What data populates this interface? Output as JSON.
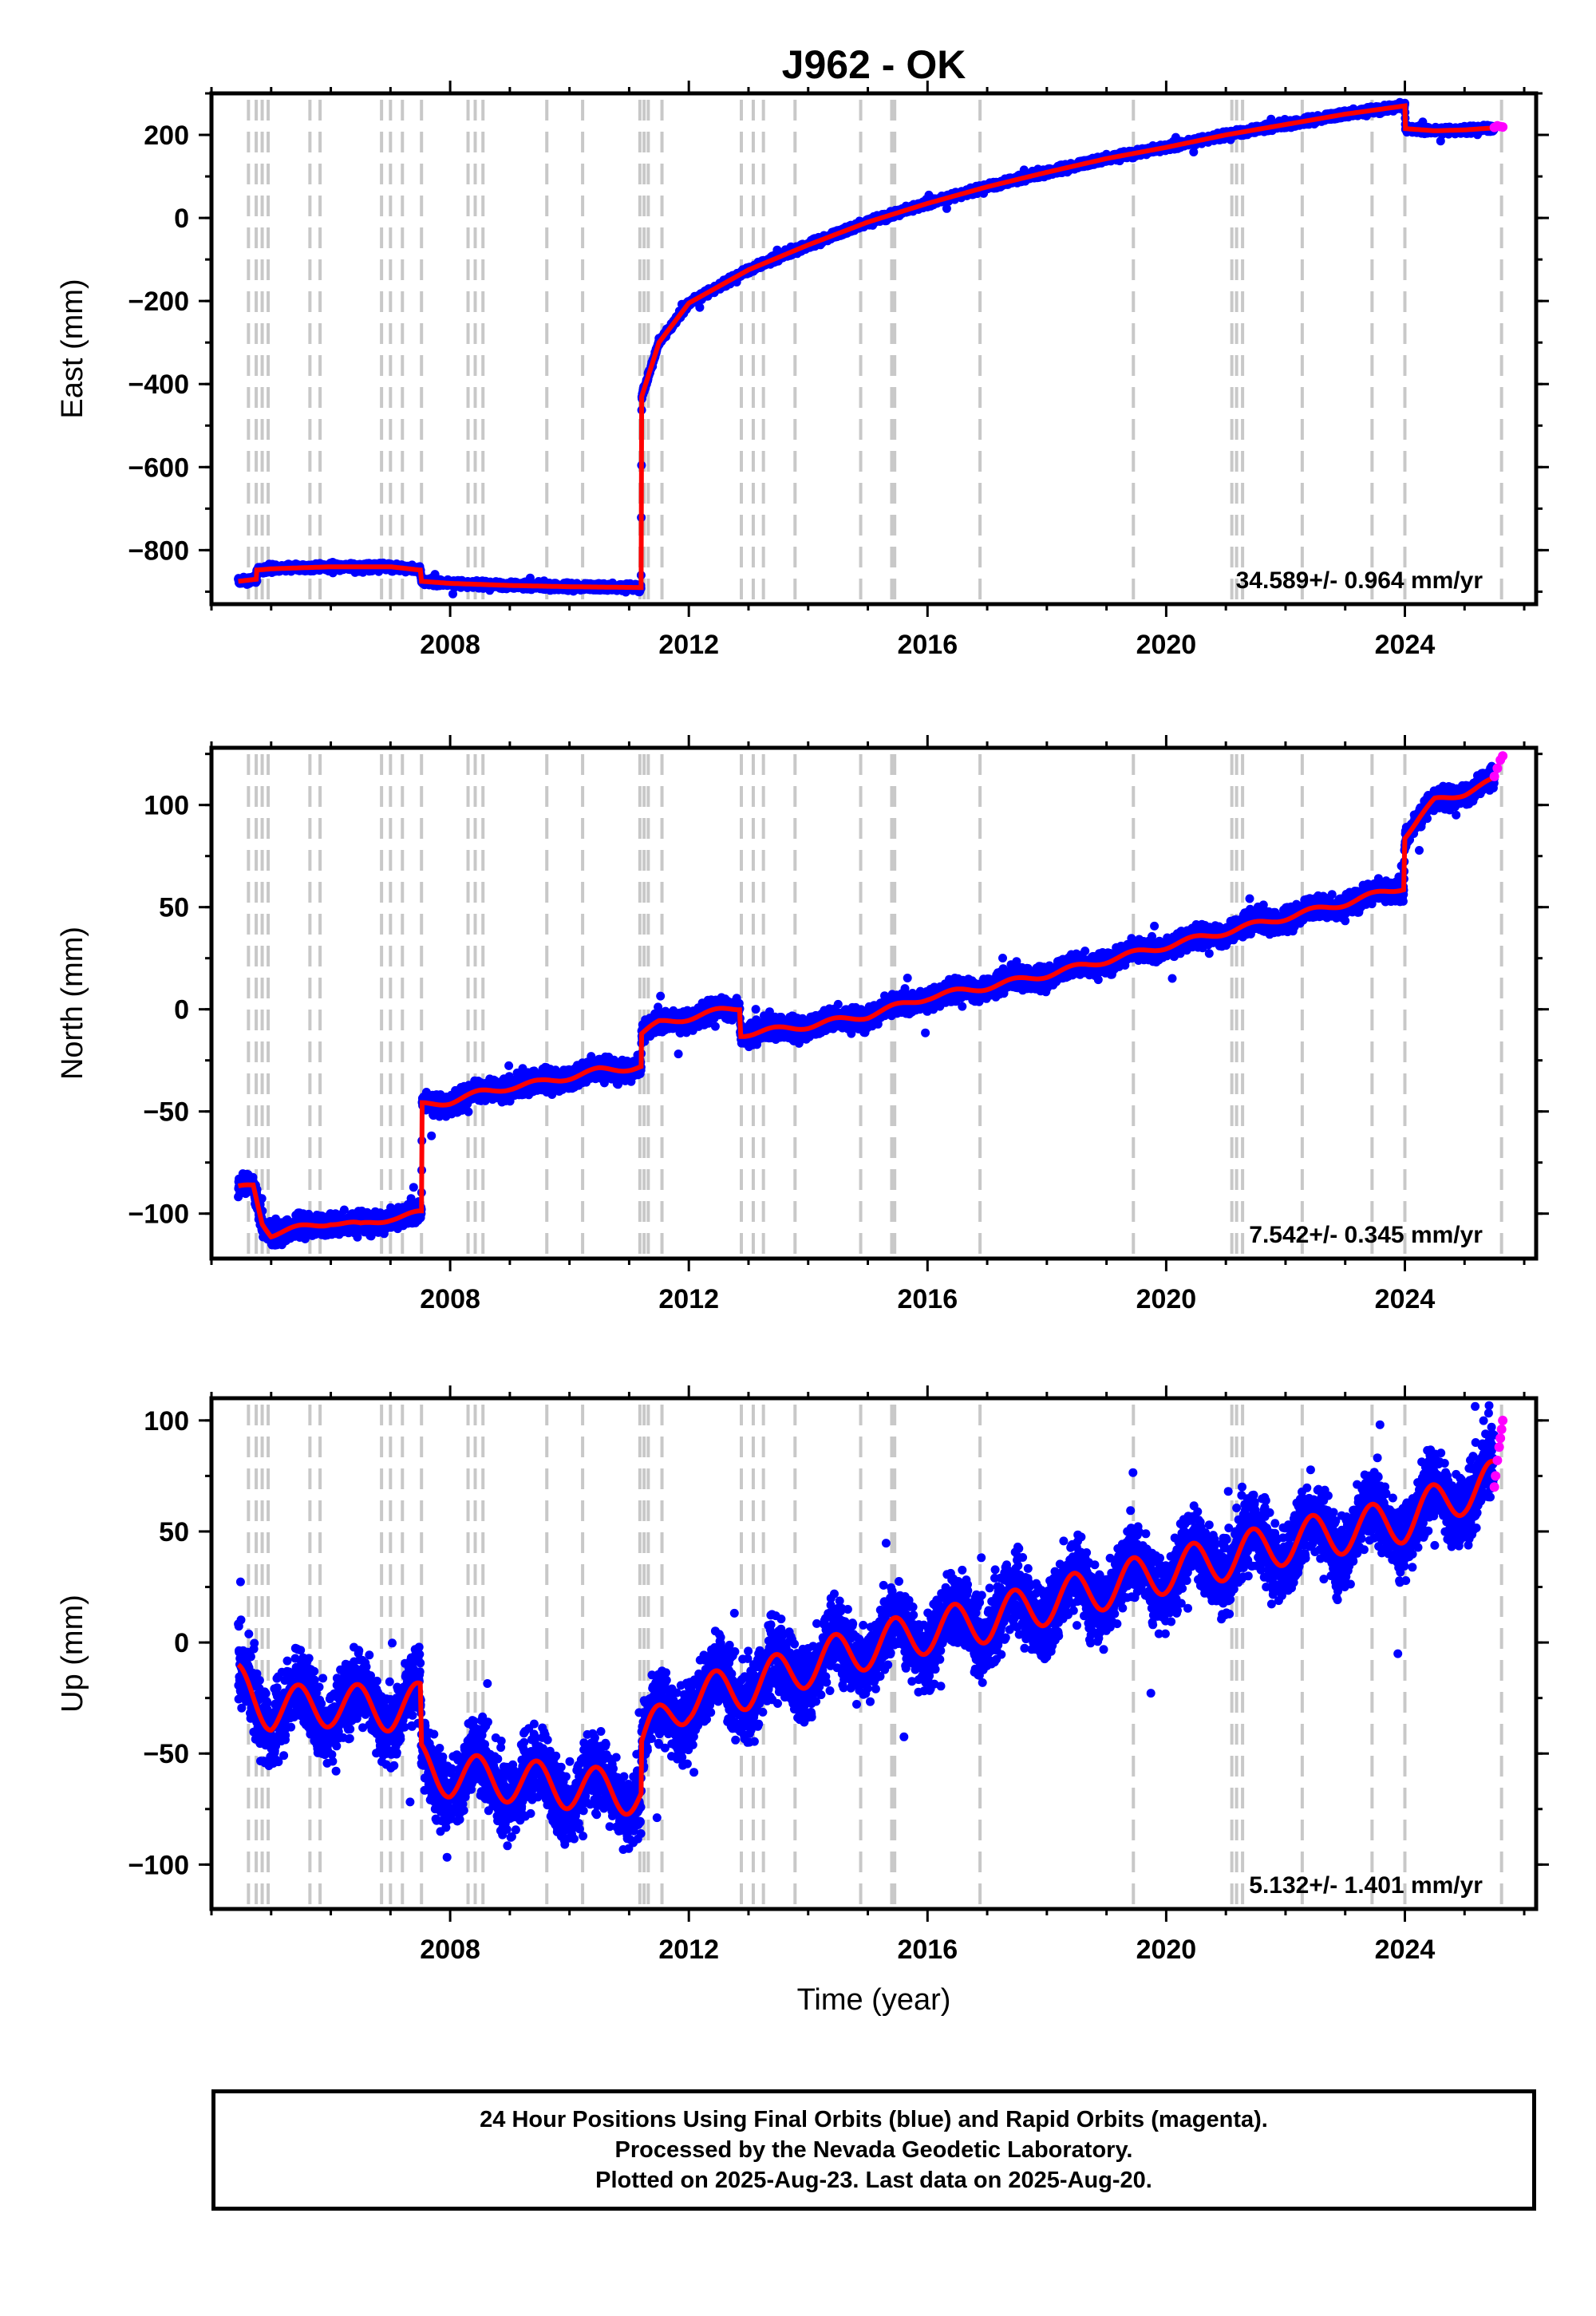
{
  "title": "J962 - OK",
  "xlabel": "Time (year)",
  "colors": {
    "final": "#0000ff",
    "rapid": "#ff00ff",
    "model": "#ff0000",
    "breaks": "#c8c8c8",
    "frame": "#000000"
  },
  "footer": {
    "line1": "24 Hour Positions Using Final Orbits (blue) and Rapid Orbits (magenta).",
    "line2": "Processed by the Nevada Geodetic Laboratory.",
    "line3": "Plotted on 2025-Aug-23. Last data on 2025-Aug-20."
  },
  "chart_data": [
    {
      "type": "scatter",
      "title": "J962 - OK",
      "ylabel": "East (mm)",
      "xlim": [
        2004.0,
        2026.2
      ],
      "ylim": [
        -930,
        300
      ],
      "xticks": [
        2008,
        2012,
        2016,
        2020,
        2024
      ],
      "yticks": [
        200,
        0,
        -200,
        -400,
        -600,
        -800
      ],
      "rate": "34.589+/- 0.964 mm/yr",
      "break_years": [
        2004.62,
        2004.75,
        2004.85,
        2004.95,
        2005.65,
        2005.82,
        2006.85,
        2007.0,
        2007.2,
        2007.52,
        2008.3,
        2008.42,
        2008.55,
        2009.62,
        2010.22,
        2011.18,
        2011.25,
        2011.32,
        2011.55,
        2012.88,
        2013.08,
        2013.25,
        2013.78,
        2014.88,
        2015.4,
        2015.45,
        2016.88,
        2019.45,
        2021.1,
        2021.18,
        2021.28,
        2022.28,
        2023.45,
        2024.0,
        2025.62
      ],
      "noise_mm": 4,
      "series": [
        {
          "name": "Final Orbits",
          "x": [
            2004.45,
            2004.75,
            2004.76,
            2005.0,
            2006.0,
            2007.0,
            2007.5,
            2007.52,
            2008.0,
            2009.0,
            2010.0,
            2011.2,
            2011.21,
            2011.5,
            2012.0,
            2013.0,
            2014.0,
            2015.0,
            2016.0,
            2017.0,
            2018.0,
            2019.0,
            2020.0,
            2021.0,
            2022.0,
            2023.0,
            2024.0,
            2024.01,
            2024.5,
            2025.0,
            2025.5
          ],
          "y": [
            -875,
            -870,
            -848,
            -845,
            -840,
            -840,
            -848,
            -875,
            -880,
            -885,
            -888,
            -890,
            -430,
            -300,
            -205,
            -125,
            -65,
            -10,
            35,
            75,
            110,
            143,
            170,
            200,
            225,
            250,
            270,
            215,
            210,
            212,
            217
          ]
        },
        {
          "name": "Rapid Orbits",
          "x": [
            2025.5,
            2025.55,
            2025.6,
            2025.64
          ],
          "y": [
            218,
            222,
            220,
            219
          ]
        }
      ]
    },
    {
      "type": "scatter",
      "ylabel": "North (mm)",
      "xlim": [
        2004.0,
        2026.2
      ],
      "ylim": [
        -122,
        128
      ],
      "xticks": [
        2008,
        2012,
        2016,
        2020,
        2024
      ],
      "yticks": [
        100,
        50,
        0,
        -50,
        -100
      ],
      "rate": "7.542+/- 0.345 mm/yr",
      "break_years": [
        2004.62,
        2004.75,
        2004.85,
        2004.95,
        2005.65,
        2005.82,
        2006.85,
        2007.0,
        2007.2,
        2007.52,
        2008.3,
        2008.42,
        2008.55,
        2009.62,
        2010.22,
        2011.18,
        2011.25,
        2011.32,
        2011.55,
        2012.88,
        2013.08,
        2013.25,
        2013.78,
        2014.88,
        2015.4,
        2015.45,
        2016.88,
        2019.45,
        2021.1,
        2021.18,
        2021.28,
        2022.28,
        2023.45,
        2024.0,
        2025.62
      ],
      "noise_mm": 2.5,
      "series": [
        {
          "name": "Final Orbits",
          "x": [
            2004.45,
            2004.7,
            2004.85,
            2005.0,
            2005.5,
            2006.0,
            2006.5,
            2007.0,
            2007.52,
            2007.53,
            2008.0,
            2008.5,
            2009.0,
            2009.5,
            2010.0,
            2010.5,
            2011.2,
            2011.21,
            2011.5,
            2012.0,
            2012.5,
            2012.85,
            2012.87,
            2013.5,
            2014.0,
            2015.0,
            2016.0,
            2017.0,
            2018.0,
            2019.0,
            2020.0,
            2021.0,
            2022.0,
            2023.0,
            2023.98,
            2024.0,
            2024.5,
            2025.0,
            2025.5
          ],
          "y": [
            -88,
            -86,
            -104,
            -110,
            -107,
            -104,
            -106,
            -102,
            -100,
            -47,
            -45,
            -41,
            -38,
            -36,
            -33,
            -30,
            -28,
            -12,
            -7,
            -4,
            -1,
            1,
            -12,
            -10,
            -8,
            -3,
            6,
            11,
            17,
            24,
            31,
            38,
            45,
            52,
            60,
            85,
            102,
            106,
            112
          ]
        },
        {
          "name": "Rapid Orbits",
          "x": [
            2025.5,
            2025.55,
            2025.6,
            2025.64
          ],
          "y": [
            114,
            118,
            122,
            124
          ]
        }
      ]
    },
    {
      "type": "scatter",
      "ylabel": "Up (mm)",
      "xlim": [
        2004.0,
        2026.2
      ],
      "ylim": [
        -120,
        110
      ],
      "xticks": [
        2008,
        2012,
        2016,
        2020,
        2024
      ],
      "yticks": [
        100,
        50,
        0,
        -50,
        -100
      ],
      "rate": "5.132+/- 1.401 mm/yr",
      "break_years": [
        2004.62,
        2004.75,
        2004.85,
        2004.95,
        2005.65,
        2005.82,
        2006.85,
        2007.0,
        2007.2,
        2007.52,
        2008.3,
        2008.42,
        2008.55,
        2009.62,
        2010.22,
        2011.18,
        2011.25,
        2011.32,
        2011.55,
        2012.88,
        2013.08,
        2013.25,
        2013.78,
        2014.88,
        2015.4,
        2015.45,
        2016.88,
        2019.45,
        2021.1,
        2021.18,
        2021.28,
        2022.28,
        2023.45,
        2024.0,
        2025.62
      ],
      "noise_mm": 8,
      "series": [
        {
          "name": "Final Orbits",
          "x": [
            2004.45,
            2005.0,
            2006.0,
            2007.0,
            2007.5,
            2007.52,
            2008.0,
            2009.0,
            2010.0,
            2011.2,
            2011.21,
            2012.0,
            2013.0,
            2014.0,
            2015.0,
            2016.0,
            2017.0,
            2018.0,
            2019.0,
            2020.0,
            2021.0,
            2022.0,
            2023.0,
            2024.0,
            2025.0,
            2025.5
          ],
          "y": [
            -20,
            -30,
            -28,
            -30,
            -28,
            -55,
            -60,
            -62,
            -65,
            -68,
            -45,
            -25,
            -20,
            -10,
            -2,
            5,
            10,
            18,
            25,
            32,
            38,
            45,
            50,
            55,
            68,
            72
          ]
        },
        {
          "name": "Rapid Orbits",
          "x": [
            2025.5,
            2025.52,
            2025.55,
            2025.58,
            2025.6,
            2025.62,
            2025.64
          ],
          "y": [
            70,
            75,
            82,
            88,
            92,
            96,
            100
          ]
        }
      ]
    }
  ]
}
